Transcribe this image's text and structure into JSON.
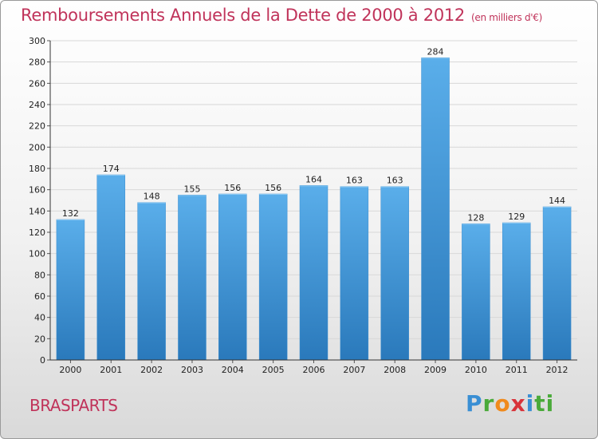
{
  "title": "Remboursements Annuels de la Dette de 2000 à 2012",
  "title_unit": "(en milliers d'€)",
  "town": "BRASPARTS",
  "logo": {
    "letters": [
      "P",
      "r",
      "o",
      "x",
      "i",
      "ti"
    ]
  },
  "colors": {
    "bar_top": "#5aaeea",
    "bar_bottom": "#2a79bb",
    "accent": "#c0335a"
  },
  "chart_data": {
    "type": "bar",
    "title": "Remboursements Annuels de la Dette de 2000 à 2012",
    "xlabel": "",
    "ylabel": "",
    "categories": [
      "2000",
      "2001",
      "2002",
      "2003",
      "2004",
      "2005",
      "2006",
      "2007",
      "2008",
      "2009",
      "2010",
      "2011",
      "2012"
    ],
    "values": [
      132,
      174,
      148,
      155,
      156,
      156,
      164,
      163,
      163,
      284,
      128,
      129,
      144
    ],
    "ylim": [
      0,
      300
    ],
    "yticks": [
      0,
      20,
      40,
      60,
      80,
      100,
      120,
      140,
      160,
      180,
      200,
      220,
      240,
      260,
      280,
      300
    ],
    "grid": true,
    "data_labels": true
  }
}
